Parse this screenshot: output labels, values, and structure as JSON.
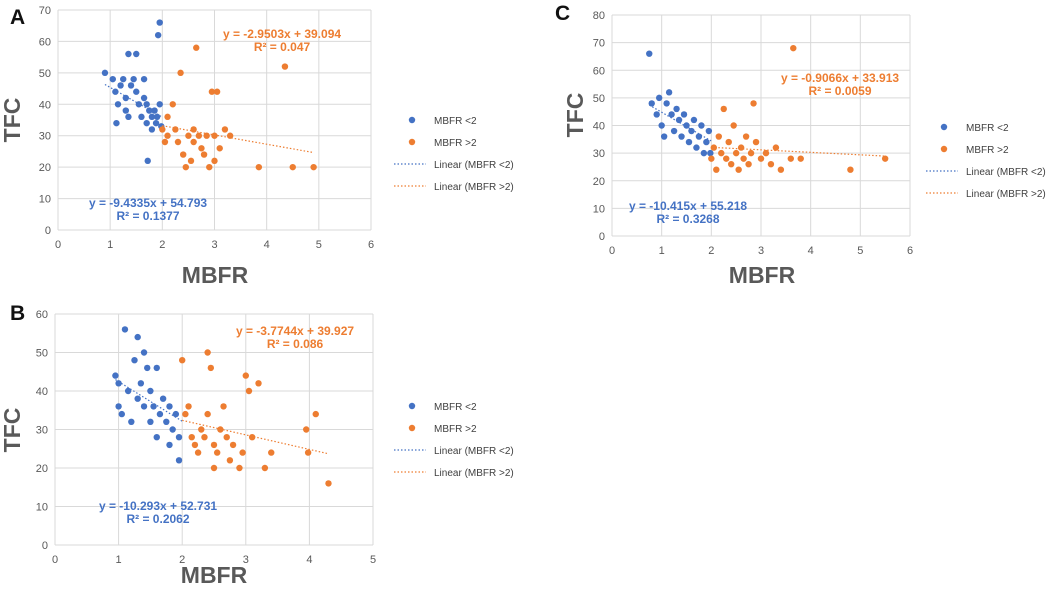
{
  "colors": {
    "mbfr_lt2": "#4472c4",
    "mbfr_gt2": "#ed7d31",
    "grid": "#d9d9d9",
    "text": "#595959"
  },
  "chart_data": [
    {
      "panel": "A",
      "type": "scatter",
      "xlabel": "MBFR",
      "ylabel": "TFC",
      "xlim": [
        0,
        6
      ],
      "ylim": [
        0,
        70
      ],
      "xticks": [
        "0",
        "1",
        "2",
        "3",
        "4",
        "5",
        "6"
      ],
      "yticks": [
        "0",
        "10",
        "20",
        "30",
        "40",
        "50",
        "60",
        "70"
      ],
      "legend": [
        "MBFR <2",
        "MBFR >2",
        "Linear (MBFR <2)",
        "Linear (MBFR >2)"
      ],
      "series": [
        {
          "name": "MBFR <2",
          "points": [
            [
              0.9,
              50
            ],
            [
              1.05,
              48
            ],
            [
              1.1,
              44
            ],
            [
              1.12,
              34
            ],
            [
              1.15,
              40
            ],
            [
              1.2,
              46
            ],
            [
              1.25,
              48
            ],
            [
              1.3,
              42
            ],
            [
              1.3,
              38
            ],
            [
              1.35,
              56
            ],
            [
              1.35,
              36
            ],
            [
              1.4,
              46
            ],
            [
              1.45,
              48
            ],
            [
              1.5,
              56
            ],
            [
              1.5,
              44
            ],
            [
              1.55,
              40
            ],
            [
              1.6,
              36
            ],
            [
              1.65,
              48
            ],
            [
              1.65,
              42
            ],
            [
              1.7,
              40
            ],
            [
              1.7,
              34
            ],
            [
              1.72,
              22
            ],
            [
              1.75,
              38
            ],
            [
              1.8,
              36
            ],
            [
              1.8,
              32
            ],
            [
              1.85,
              38
            ],
            [
              1.88,
              34
            ],
            [
              1.9,
              36
            ],
            [
              1.92,
              62
            ],
            [
              1.95,
              66
            ],
            [
              1.95,
              40
            ],
            [
              1.98,
              33
            ]
          ],
          "trend": {
            "equation": "y = -9.4335x + 54.793",
            "r2": "R² = 0.1377",
            "slope": -9.4335,
            "intercept": 54.793,
            "x_range": [
              0.9,
              2.0
            ]
          }
        },
        {
          "name": "MBFR >2",
          "points": [
            [
              2.0,
              32
            ],
            [
              2.05,
              28
            ],
            [
              2.1,
              36
            ],
            [
              2.1,
              30
            ],
            [
              2.2,
              40
            ],
            [
              2.25,
              32
            ],
            [
              2.3,
              28
            ],
            [
              2.35,
              50
            ],
            [
              2.4,
              24
            ],
            [
              2.45,
              20
            ],
            [
              2.5,
              30
            ],
            [
              2.55,
              22
            ],
            [
              2.6,
              28
            ],
            [
              2.6,
              32
            ],
            [
              2.65,
              58
            ],
            [
              2.7,
              30
            ],
            [
              2.75,
              26
            ],
            [
              2.8,
              24
            ],
            [
              2.85,
              30
            ],
            [
              2.9,
              20
            ],
            [
              2.95,
              44
            ],
            [
              3.0,
              30
            ],
            [
              3.0,
              22
            ],
            [
              3.05,
              44
            ],
            [
              3.1,
              26
            ],
            [
              3.2,
              32
            ],
            [
              3.3,
              30
            ],
            [
              3.85,
              20
            ],
            [
              4.35,
              52
            ],
            [
              4.5,
              20
            ],
            [
              4.9,
              20
            ]
          ],
          "trend": {
            "equation": "y = -2.9503x + 39.094",
            "r2": "R² = 0.047",
            "slope": -2.9503,
            "intercept": 39.094,
            "x_range": [
              2.0,
              4.9
            ]
          }
        }
      ]
    },
    {
      "panel": "B",
      "type": "scatter",
      "xlabel": "MBFR",
      "ylabel": "TFC",
      "xlim": [
        0,
        5
      ],
      "ylim": [
        0,
        60
      ],
      "xticks": [
        "0",
        "1",
        "2",
        "3",
        "4",
        "5"
      ],
      "yticks": [
        "0",
        "10",
        "20",
        "30",
        "40",
        "50",
        "60"
      ],
      "legend": [
        "MBFR <2",
        "MBFR >2",
        "Linear (MBFR <2)",
        "Linear (MBFR >2)"
      ],
      "series": [
        {
          "name": "MBFR <2",
          "points": [
            [
              0.95,
              44
            ],
            [
              1.0,
              42
            ],
            [
              1.0,
              36
            ],
            [
              1.05,
              34
            ],
            [
              1.1,
              56
            ],
            [
              1.15,
              40
            ],
            [
              1.2,
              32
            ],
            [
              1.25,
              48
            ],
            [
              1.3,
              38
            ],
            [
              1.3,
              54
            ],
            [
              1.35,
              42
            ],
            [
              1.4,
              50
            ],
            [
              1.4,
              36
            ],
            [
              1.45,
              46
            ],
            [
              1.5,
              32
            ],
            [
              1.5,
              40
            ],
            [
              1.55,
              36
            ],
            [
              1.6,
              46
            ],
            [
              1.6,
              28
            ],
            [
              1.65,
              34
            ],
            [
              1.7,
              38
            ],
            [
              1.75,
              32
            ],
            [
              1.8,
              26
            ],
            [
              1.8,
              36
            ],
            [
              1.85,
              30
            ],
            [
              1.9,
              34
            ],
            [
              1.95,
              22
            ],
            [
              1.95,
              28
            ]
          ],
          "trend": {
            "equation": "y = -10.293x + 52.731",
            "r2": "R² = 0.2062",
            "slope": -10.293,
            "intercept": 52.731,
            "x_range": [
              0.95,
              2.0
            ]
          }
        },
        {
          "name": "MBFR >2",
          "points": [
            [
              2.0,
              48
            ],
            [
              2.05,
              34
            ],
            [
              2.1,
              36
            ],
            [
              2.15,
              28
            ],
            [
              2.2,
              26
            ],
            [
              2.25,
              24
            ],
            [
              2.3,
              30
            ],
            [
              2.35,
              28
            ],
            [
              2.4,
              50
            ],
            [
              2.4,
              34
            ],
            [
              2.45,
              46
            ],
            [
              2.5,
              20
            ],
            [
              2.5,
              26
            ],
            [
              2.55,
              24
            ],
            [
              2.6,
              30
            ],
            [
              2.65,
              36
            ],
            [
              2.7,
              28
            ],
            [
              2.75,
              22
            ],
            [
              2.8,
              26
            ],
            [
              2.9,
              20
            ],
            [
              2.95,
              24
            ],
            [
              3.0,
              44
            ],
            [
              3.05,
              40
            ],
            [
              3.1,
              28
            ],
            [
              3.2,
              42
            ],
            [
              3.3,
              20
            ],
            [
              3.4,
              24
            ],
            [
              3.95,
              30
            ],
            [
              3.98,
              24
            ],
            [
              4.1,
              34
            ],
            [
              4.3,
              16
            ]
          ],
          "trend": {
            "equation": "y = -3.7744x + 39.927",
            "r2": "R² = 0.086",
            "slope": -3.7744,
            "intercept": 39.927,
            "x_range": [
              2.0,
              4.3
            ]
          }
        }
      ]
    },
    {
      "panel": "C",
      "type": "scatter",
      "xlabel": "MBFR",
      "ylabel": "TFC",
      "xlim": [
        0,
        6
      ],
      "ylim": [
        0,
        80
      ],
      "xticks": [
        "0",
        "1",
        "2",
        "3",
        "4",
        "5",
        "6"
      ],
      "yticks": [
        "0",
        "10",
        "20",
        "30",
        "40",
        "50",
        "60",
        "70",
        "80"
      ],
      "legend": [
        "MBFR <2",
        "MBFR >2",
        "Linear (MBFR <2)",
        "Linear (MBFR >2)"
      ],
      "series": [
        {
          "name": "MBFR <2",
          "points": [
            [
              0.75,
              66
            ],
            [
              0.8,
              48
            ],
            [
              0.9,
              44
            ],
            [
              0.95,
              50
            ],
            [
              1.0,
              40
            ],
            [
              1.05,
              36
            ],
            [
              1.1,
              48
            ],
            [
              1.15,
              52
            ],
            [
              1.2,
              44
            ],
            [
              1.25,
              38
            ],
            [
              1.3,
              46
            ],
            [
              1.35,
              42
            ],
            [
              1.4,
              36
            ],
            [
              1.45,
              44
            ],
            [
              1.5,
              40
            ],
            [
              1.55,
              34
            ],
            [
              1.6,
              38
            ],
            [
              1.65,
              42
            ],
            [
              1.7,
              32
            ],
            [
              1.75,
              36
            ],
            [
              1.8,
              40
            ],
            [
              1.85,
              30
            ],
            [
              1.9,
              34
            ],
            [
              1.95,
              38
            ],
            [
              1.98,
              30
            ]
          ],
          "trend": {
            "equation": "y = -10.415x + 55.218",
            "r2": "R² = 0.3268",
            "slope": -10.415,
            "intercept": 55.218,
            "x_range": [
              0.75,
              2.0
            ]
          }
        },
        {
          "name": "MBFR >2",
          "points": [
            [
              2.0,
              28
            ],
            [
              2.05,
              32
            ],
            [
              2.1,
              24
            ],
            [
              2.15,
              36
            ],
            [
              2.2,
              30
            ],
            [
              2.25,
              46
            ],
            [
              2.3,
              28
            ],
            [
              2.35,
              34
            ],
            [
              2.4,
              26
            ],
            [
              2.45,
              40
            ],
            [
              2.5,
              30
            ],
            [
              2.55,
              24
            ],
            [
              2.6,
              32
            ],
            [
              2.65,
              28
            ],
            [
              2.7,
              36
            ],
            [
              2.75,
              26
            ],
            [
              2.8,
              30
            ],
            [
              2.85,
              48
            ],
            [
              2.9,
              34
            ],
            [
              3.0,
              28
            ],
            [
              3.1,
              30
            ],
            [
              3.2,
              26
            ],
            [
              3.3,
              32
            ],
            [
              3.4,
              24
            ],
            [
              3.6,
              28
            ],
            [
              3.65,
              68
            ],
            [
              3.8,
              28
            ],
            [
              4.8,
              24
            ],
            [
              5.5,
              28
            ]
          ],
          "trend": {
            "equation": "y = -0.9066x + 33.913",
            "r2": "R² = 0.0059",
            "slope": -0.9066,
            "intercept": 33.913,
            "x_range": [
              2.0,
              5.5
            ]
          }
        }
      ]
    }
  ]
}
